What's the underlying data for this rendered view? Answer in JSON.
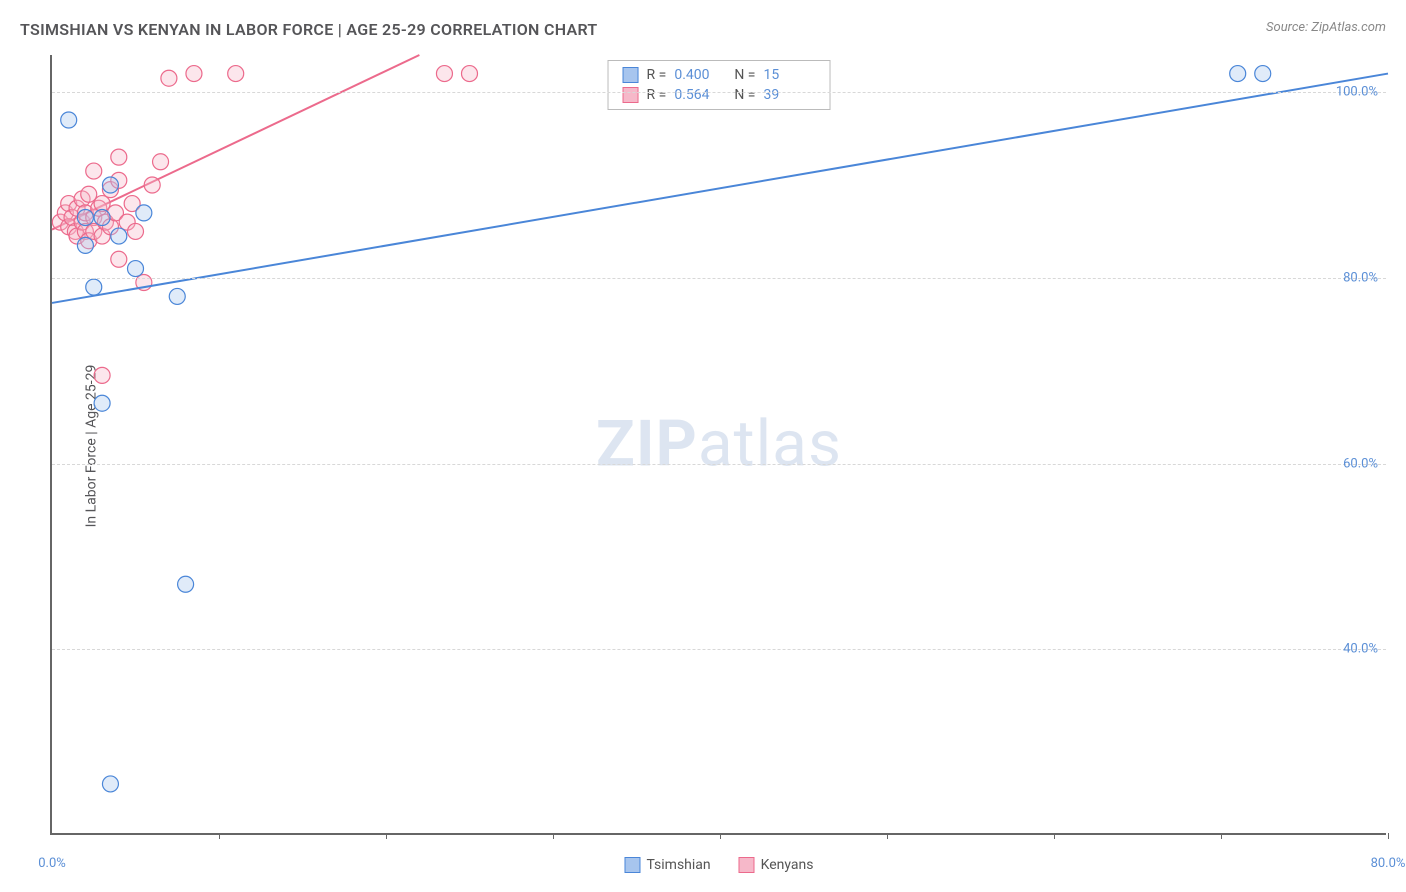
{
  "title": "TSIMSHIAN VS KENYAN IN LABOR FORCE | AGE 25-29 CORRELATION CHART",
  "source": "Source: ZipAtlas.com",
  "y_axis_label": "In Labor Force | Age 25-29",
  "watermark": {
    "zip": "ZIP",
    "atlas": "atlas"
  },
  "type": "scatter",
  "background_color": "#ffffff",
  "grid_color": "#d8d8d8",
  "axis_color": "#666666",
  "text_color": "#555558",
  "value_color": "#5b8fd6",
  "title_fontsize": 16,
  "label_fontsize": 14,
  "tick_fontsize": 13,
  "xlim": [
    0,
    80
  ],
  "ylim": [
    20,
    104
  ],
  "x_ticks": [
    0,
    10,
    20,
    30,
    40,
    50,
    60,
    70,
    80
  ],
  "x_tick_labels": [
    "0.0%",
    "",
    "",
    "",
    "",
    "",
    "",
    "",
    "80.0%"
  ],
  "y_ticks": [
    40,
    60,
    80,
    100
  ],
  "y_tick_labels": [
    "40.0%",
    "60.0%",
    "80.0%",
    "100.0%"
  ],
  "marker_radius": 8,
  "marker_fill_opacity": 0.35,
  "line_width": 2,
  "series": [
    {
      "name": "Tsimshian",
      "color_stroke": "#4a86d8",
      "color_fill": "#a7c5ee",
      "r": "0.400",
      "n": "15",
      "points": [
        [
          1.0,
          97.0
        ],
        [
          2.0,
          83.5
        ],
        [
          2.0,
          86.5
        ],
        [
          3.0,
          86.5
        ],
        [
          3.5,
          90.0
        ],
        [
          4.0,
          84.5
        ],
        [
          2.5,
          79.0
        ],
        [
          5.0,
          81.0
        ],
        [
          7.5,
          78.0
        ],
        [
          8.0,
          47.0
        ],
        [
          3.0,
          66.5
        ],
        [
          3.5,
          25.5
        ],
        [
          71.0,
          102.0
        ],
        [
          72.5,
          102.0
        ],
        [
          5.5,
          87.0
        ]
      ],
      "trend": {
        "x1": 0,
        "y1": 77.3,
        "x2": 80,
        "y2": 102.0
      }
    },
    {
      "name": "Kenyans",
      "color_stroke": "#ec6a8c",
      "color_fill": "#f6b8c9",
      "r": "0.564",
      "n": "39",
      "points": [
        [
          0.5,
          86.0
        ],
        [
          0.8,
          87.0
        ],
        [
          1.0,
          85.5
        ],
        [
          1.0,
          88.0
        ],
        [
          1.2,
          86.5
        ],
        [
          1.4,
          85.0
        ],
        [
          1.5,
          87.5
        ],
        [
          1.5,
          84.5
        ],
        [
          1.8,
          86.0
        ],
        [
          1.8,
          88.5
        ],
        [
          2.0,
          85.0
        ],
        [
          2.0,
          87.0
        ],
        [
          2.2,
          84.0
        ],
        [
          2.2,
          89.0
        ],
        [
          2.5,
          86.5
        ],
        [
          2.5,
          85.0
        ],
        [
          2.8,
          87.5
        ],
        [
          3.0,
          84.5
        ],
        [
          3.0,
          88.0
        ],
        [
          3.2,
          86.0
        ],
        [
          3.5,
          89.5
        ],
        [
          3.5,
          85.5
        ],
        [
          3.8,
          87.0
        ],
        [
          4.0,
          82.0
        ],
        [
          4.0,
          90.5
        ],
        [
          4.5,
          86.0
        ],
        [
          4.8,
          88.0
        ],
        [
          5.0,
          85.0
        ],
        [
          5.5,
          79.5
        ],
        [
          6.0,
          90.0
        ],
        [
          6.5,
          92.5
        ],
        [
          2.5,
          91.5
        ],
        [
          4.0,
          93.0
        ],
        [
          3.0,
          69.5
        ],
        [
          7.0,
          101.5
        ],
        [
          8.5,
          102.0
        ],
        [
          11.0,
          102.0
        ],
        [
          23.5,
          102.0
        ],
        [
          25.0,
          102.0
        ]
      ],
      "trend": {
        "x1": 0,
        "y1": 85.2,
        "x2": 22.0,
        "y2": 104.0
      }
    }
  ],
  "legend_bottom": [
    {
      "label": "Tsimshian",
      "fill": "#a7c5ee",
      "stroke": "#4a86d8"
    },
    {
      "label": "Kenyans",
      "fill": "#f6b8c9",
      "stroke": "#ec6a8c"
    }
  ]
}
